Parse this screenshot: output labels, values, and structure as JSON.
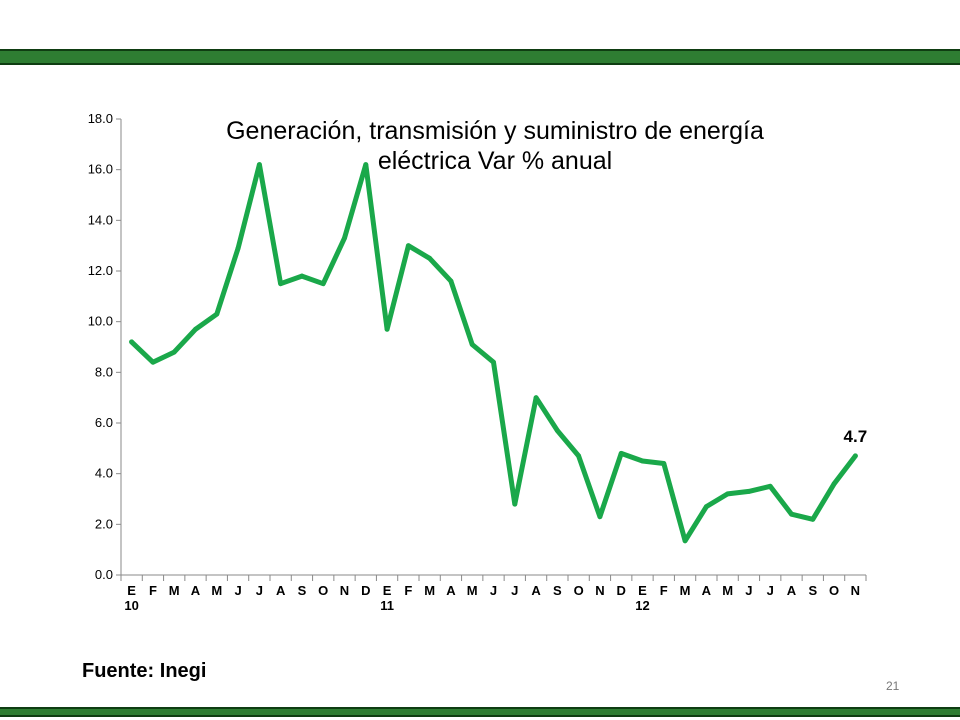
{
  "slide": {
    "source": "Fuente: Inegi",
    "page_number": "21",
    "band_color": "#2e7d32"
  },
  "chart_data": {
    "type": "line",
    "title": "Generación, transmisión y suministro de energía eléctrica Var % anual",
    "xlabel": "",
    "ylabel": "",
    "ylim": [
      0,
      18
    ],
    "yticks": [
      "0.0",
      "2.0",
      "4.0",
      "6.0",
      "8.0",
      "10.0",
      "12.0",
      "14.0",
      "16.0",
      "18.0"
    ],
    "categories": [
      "E",
      "F",
      "M",
      "A",
      "M",
      "J",
      "J",
      "A",
      "S",
      "O",
      "N",
      "D",
      "E",
      "F",
      "M",
      "A",
      "M",
      "J",
      "J",
      "A",
      "S",
      "O",
      "N",
      "D",
      "E",
      "F",
      "M",
      "A",
      "M",
      "J",
      "J",
      "A",
      "S",
      "O",
      "N"
    ],
    "year_labels": [
      {
        "index": 0,
        "label": "10"
      },
      {
        "index": 12,
        "label": "11"
      },
      {
        "index": 24,
        "label": "12"
      }
    ],
    "series": [
      {
        "color": "#1aa84a",
        "values": [
          9.2,
          8.4,
          8.8,
          9.7,
          10.3,
          12.9,
          16.2,
          11.5,
          11.8,
          11.5,
          13.3,
          16.2,
          9.7,
          13.0,
          12.5,
          11.6,
          9.1,
          8.4,
          2.8,
          7.0,
          5.7,
          4.7,
          2.3,
          4.8,
          4.5,
          4.4,
          1.35,
          2.7,
          3.2,
          3.3,
          3.5,
          2.4,
          2.2,
          3.6,
          4.7
        ]
      }
    ],
    "data_labels": [
      {
        "index": 34,
        "label": "4.7"
      }
    ],
    "grid": false,
    "legend": "none"
  }
}
